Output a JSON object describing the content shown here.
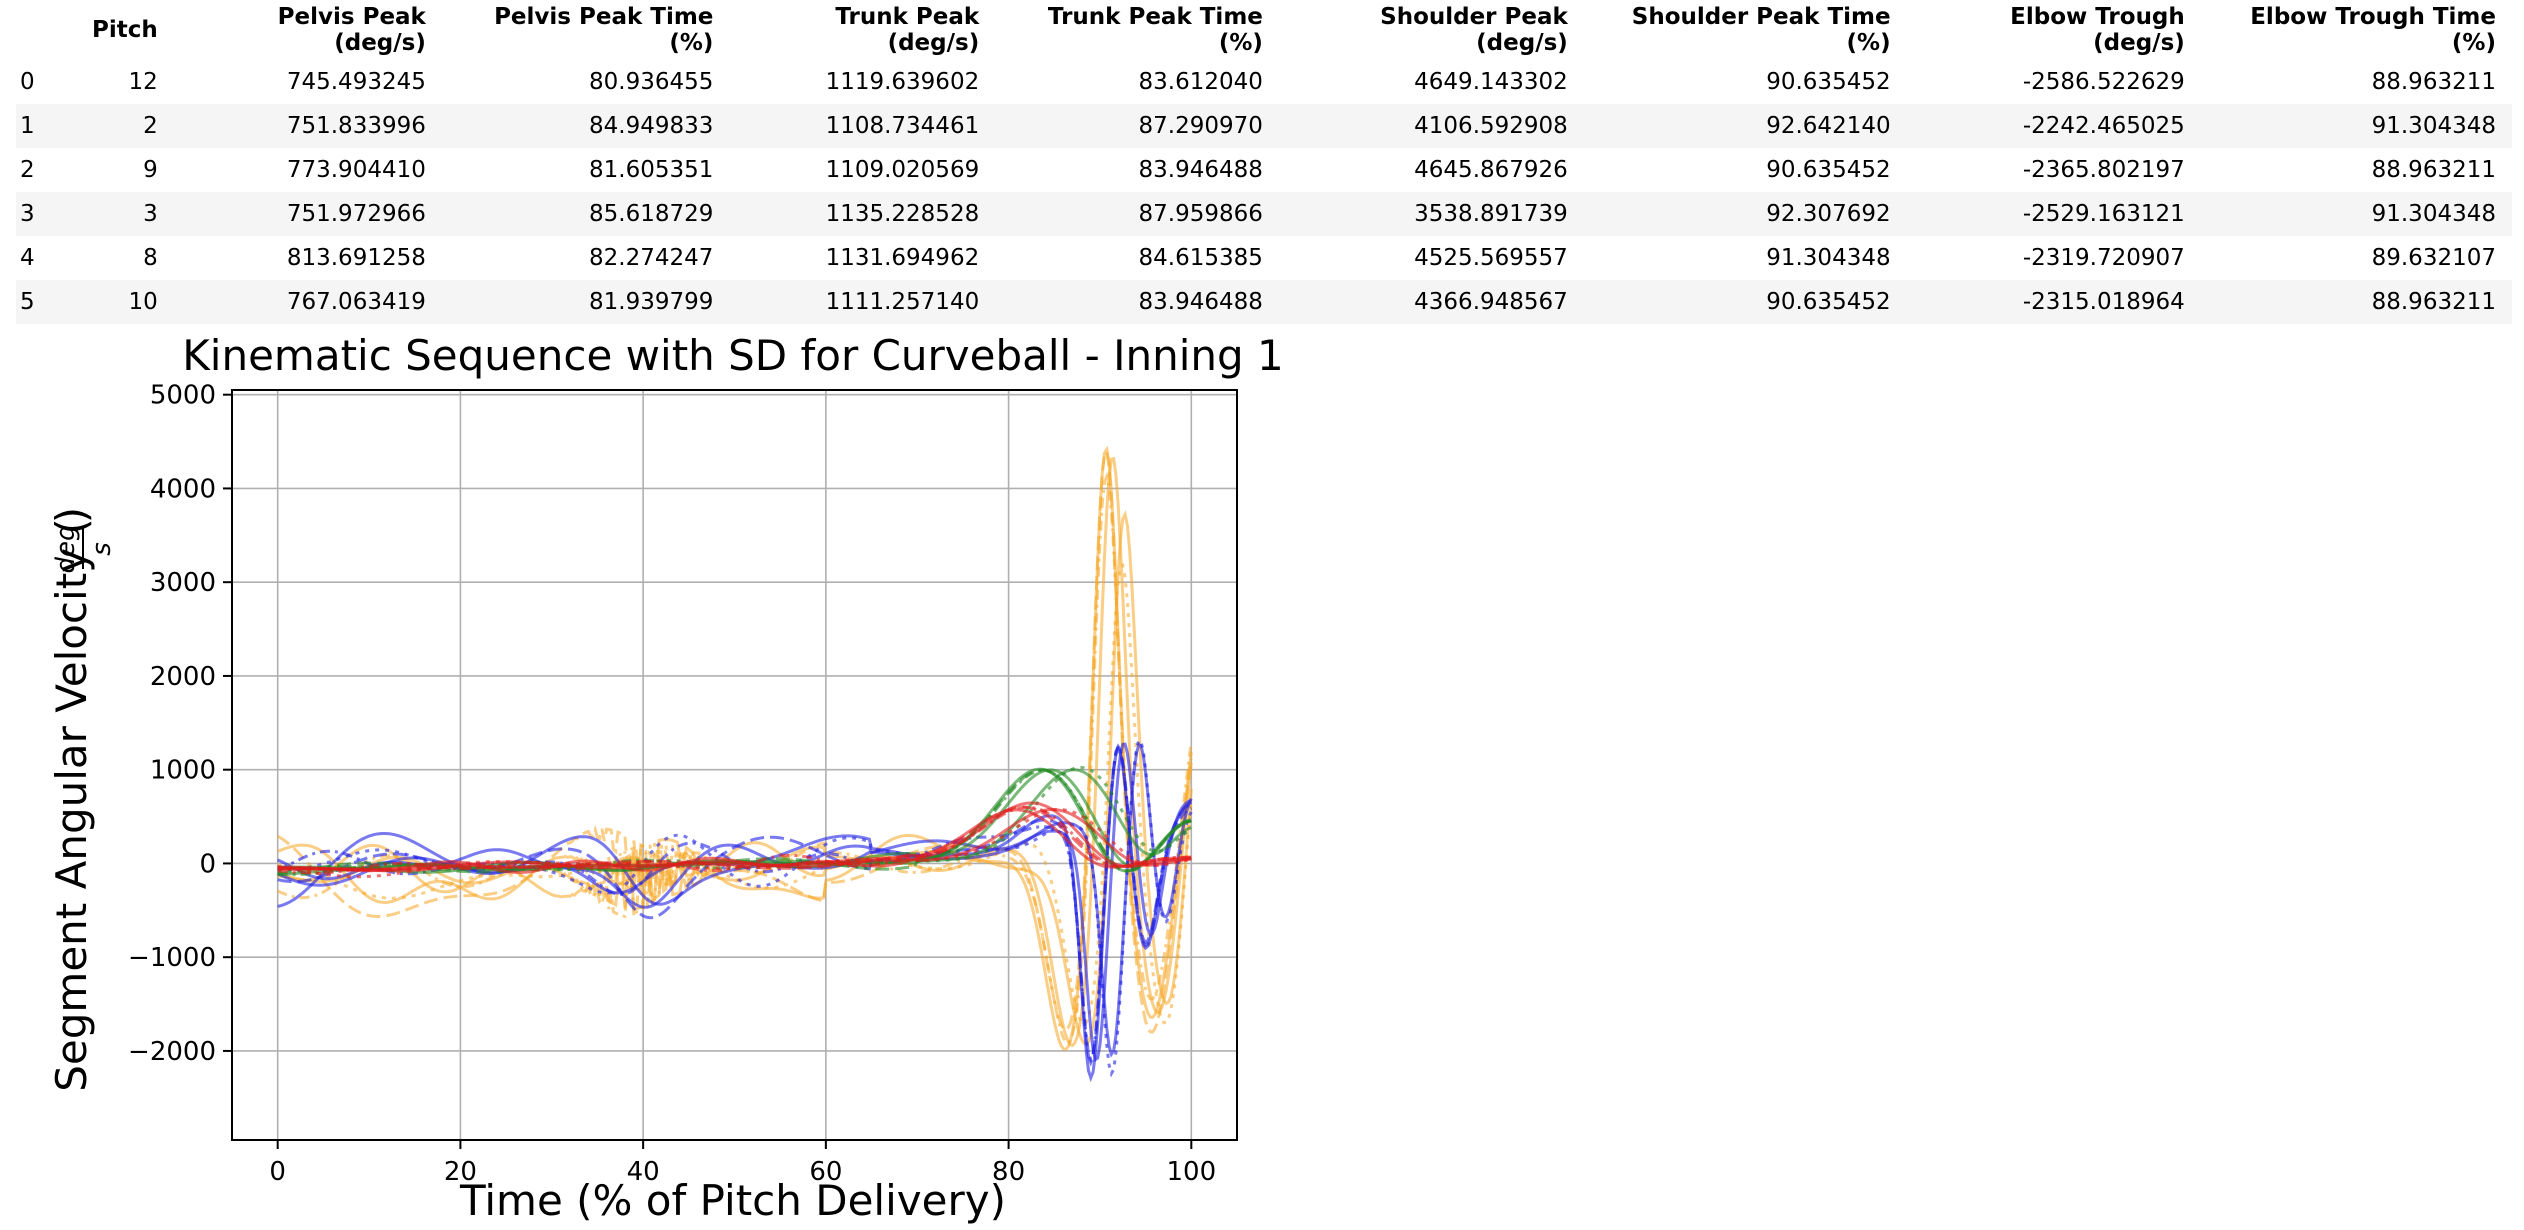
{
  "table": {
    "index_header": "",
    "columns": [
      "Pitch",
      "Pelvis Peak (deg/s)",
      "Pelvis Peak Time (%)",
      "Trunk Peak (deg/s)",
      "Trunk Peak Time (%)",
      "Shoulder Peak (deg/s)",
      "Shoulder Peak Time (%)",
      "Elbow Trough (deg/s)",
      "Elbow Trough Time (%)"
    ],
    "rows": [
      {
        "index": "0",
        "cells": [
          "12",
          "745.493245",
          "80.936455",
          "1119.639602",
          "83.612040",
          "4649.143302",
          "90.635452",
          "-2586.522629",
          "88.963211"
        ]
      },
      {
        "index": "1",
        "cells": [
          "2",
          "751.833996",
          "84.949833",
          "1108.734461",
          "87.290970",
          "4106.592908",
          "92.642140",
          "-2242.465025",
          "91.304348"
        ]
      },
      {
        "index": "2",
        "cells": [
          "9",
          "773.904410",
          "81.605351",
          "1109.020569",
          "83.946488",
          "4645.867926",
          "90.635452",
          "-2365.802197",
          "88.963211"
        ]
      },
      {
        "index": "3",
        "cells": [
          "3",
          "751.972966",
          "85.618729",
          "1135.228528",
          "87.959866",
          "3538.891739",
          "92.307692",
          "-2529.163121",
          "91.304348"
        ]
      },
      {
        "index": "4",
        "cells": [
          "8",
          "813.691258",
          "82.274247",
          "1131.694962",
          "84.615385",
          "4525.569557",
          "91.304348",
          "-2319.720907",
          "89.632107"
        ]
      },
      {
        "index": "5",
        "cells": [
          "10",
          "767.063419",
          "81.939799",
          "1111.257140",
          "83.946488",
          "4366.948567",
          "90.635452",
          "-2315.018964",
          "88.963211"
        ]
      }
    ]
  },
  "chart_data": {
    "type": "line",
    "title": "Kinematic Sequence with SD for Curveball - Inning 1",
    "xlabel": "Time (% of Pitch Delivery)",
    "ylabel": "Segment Angular Velocity (deg/s)",
    "ylabel_main": "Segment Angular Velocity (",
    "ylabel_frac_num": "deg",
    "ylabel_frac_den": "s",
    "ylabel_close": ")",
    "xlim": [
      -5,
      105
    ],
    "ylim": [
      -2950,
      5050
    ],
    "xticks": [
      0,
      20,
      40,
      60,
      80,
      100
    ],
    "yticks": [
      -2000,
      -1000,
      0,
      1000,
      2000,
      3000,
      4000,
      5000
    ],
    "xtick_labels": [
      "0",
      "20",
      "40",
      "60",
      "80",
      "100"
    ],
    "ytick_labels": [
      "−2000",
      "−1000",
      "0",
      "1000",
      "2000",
      "3000",
      "4000",
      "5000"
    ],
    "grid": true,
    "series": [
      {
        "segment": "pelvis",
        "color": "#e41a1c",
        "pitch": "12",
        "peak": 745.5,
        "peak_t": 80.9
      },
      {
        "segment": "pelvis",
        "color": "#e41a1c",
        "pitch": "2",
        "peak": 751.8,
        "peak_t": 84.9
      },
      {
        "segment": "pelvis",
        "color": "#e41a1c",
        "pitch": "9",
        "peak": 773.9,
        "peak_t": 81.6
      },
      {
        "segment": "pelvis",
        "color": "#e41a1c",
        "pitch": "3",
        "peak": 752.0,
        "peak_t": 85.6
      },
      {
        "segment": "pelvis",
        "color": "#e41a1c",
        "pitch": "8",
        "peak": 813.7,
        "peak_t": 82.3
      },
      {
        "segment": "pelvis",
        "color": "#e41a1c",
        "pitch": "10",
        "peak": 767.1,
        "peak_t": 81.9
      },
      {
        "segment": "trunk",
        "color": "#228b22",
        "pitch": "12",
        "peak": 1119.6,
        "peak_t": 83.6
      },
      {
        "segment": "trunk",
        "color": "#228b22",
        "pitch": "2",
        "peak": 1108.7,
        "peak_t": 87.3
      },
      {
        "segment": "trunk",
        "color": "#228b22",
        "pitch": "9",
        "peak": 1109.0,
        "peak_t": 83.9
      },
      {
        "segment": "trunk",
        "color": "#228b22",
        "pitch": "3",
        "peak": 1135.2,
        "peak_t": 88.0
      },
      {
        "segment": "trunk",
        "color": "#228b22",
        "pitch": "8",
        "peak": 1131.7,
        "peak_t": 84.6
      },
      {
        "segment": "trunk",
        "color": "#228b22",
        "pitch": "10",
        "peak": 1111.3,
        "peak_t": 83.9
      },
      {
        "segment": "shoulder",
        "color": "#f5a623",
        "pitch": "12",
        "peak": 4649.1,
        "peak_t": 90.6
      },
      {
        "segment": "shoulder",
        "color": "#f5a623",
        "pitch": "2",
        "peak": 4106.6,
        "peak_t": 92.6
      },
      {
        "segment": "shoulder",
        "color": "#f5a623",
        "pitch": "9",
        "peak": 4645.9,
        "peak_t": 90.6
      },
      {
        "segment": "shoulder",
        "color": "#f5a623",
        "pitch": "3",
        "peak": 3538.9,
        "peak_t": 92.3
      },
      {
        "segment": "shoulder",
        "color": "#f5a623",
        "pitch": "8",
        "peak": 4525.6,
        "peak_t": 91.3
      },
      {
        "segment": "shoulder",
        "color": "#f5a623",
        "pitch": "10",
        "peak": 4366.9,
        "peak_t": 90.6
      },
      {
        "segment": "elbow",
        "color": "#1f1fe6",
        "pitch": "12",
        "trough": -2586.5,
        "trough_t": 89.0
      },
      {
        "segment": "elbow",
        "color": "#1f1fe6",
        "pitch": "2",
        "trough": -2242.5,
        "trough_t": 91.3
      },
      {
        "segment": "elbow",
        "color": "#1f1fe6",
        "pitch": "9",
        "trough": -2365.8,
        "trough_t": 89.0
      },
      {
        "segment": "elbow",
        "color": "#1f1fe6",
        "pitch": "3",
        "trough": -2529.2,
        "trough_t": 91.3
      },
      {
        "segment": "elbow",
        "color": "#1f1fe6",
        "pitch": "8",
        "trough": -2319.7,
        "trough_t": 89.6
      },
      {
        "segment": "elbow",
        "color": "#1f1fe6",
        "pitch": "10",
        "trough": -2315.0,
        "trough_t": 89.0
      }
    ]
  }
}
